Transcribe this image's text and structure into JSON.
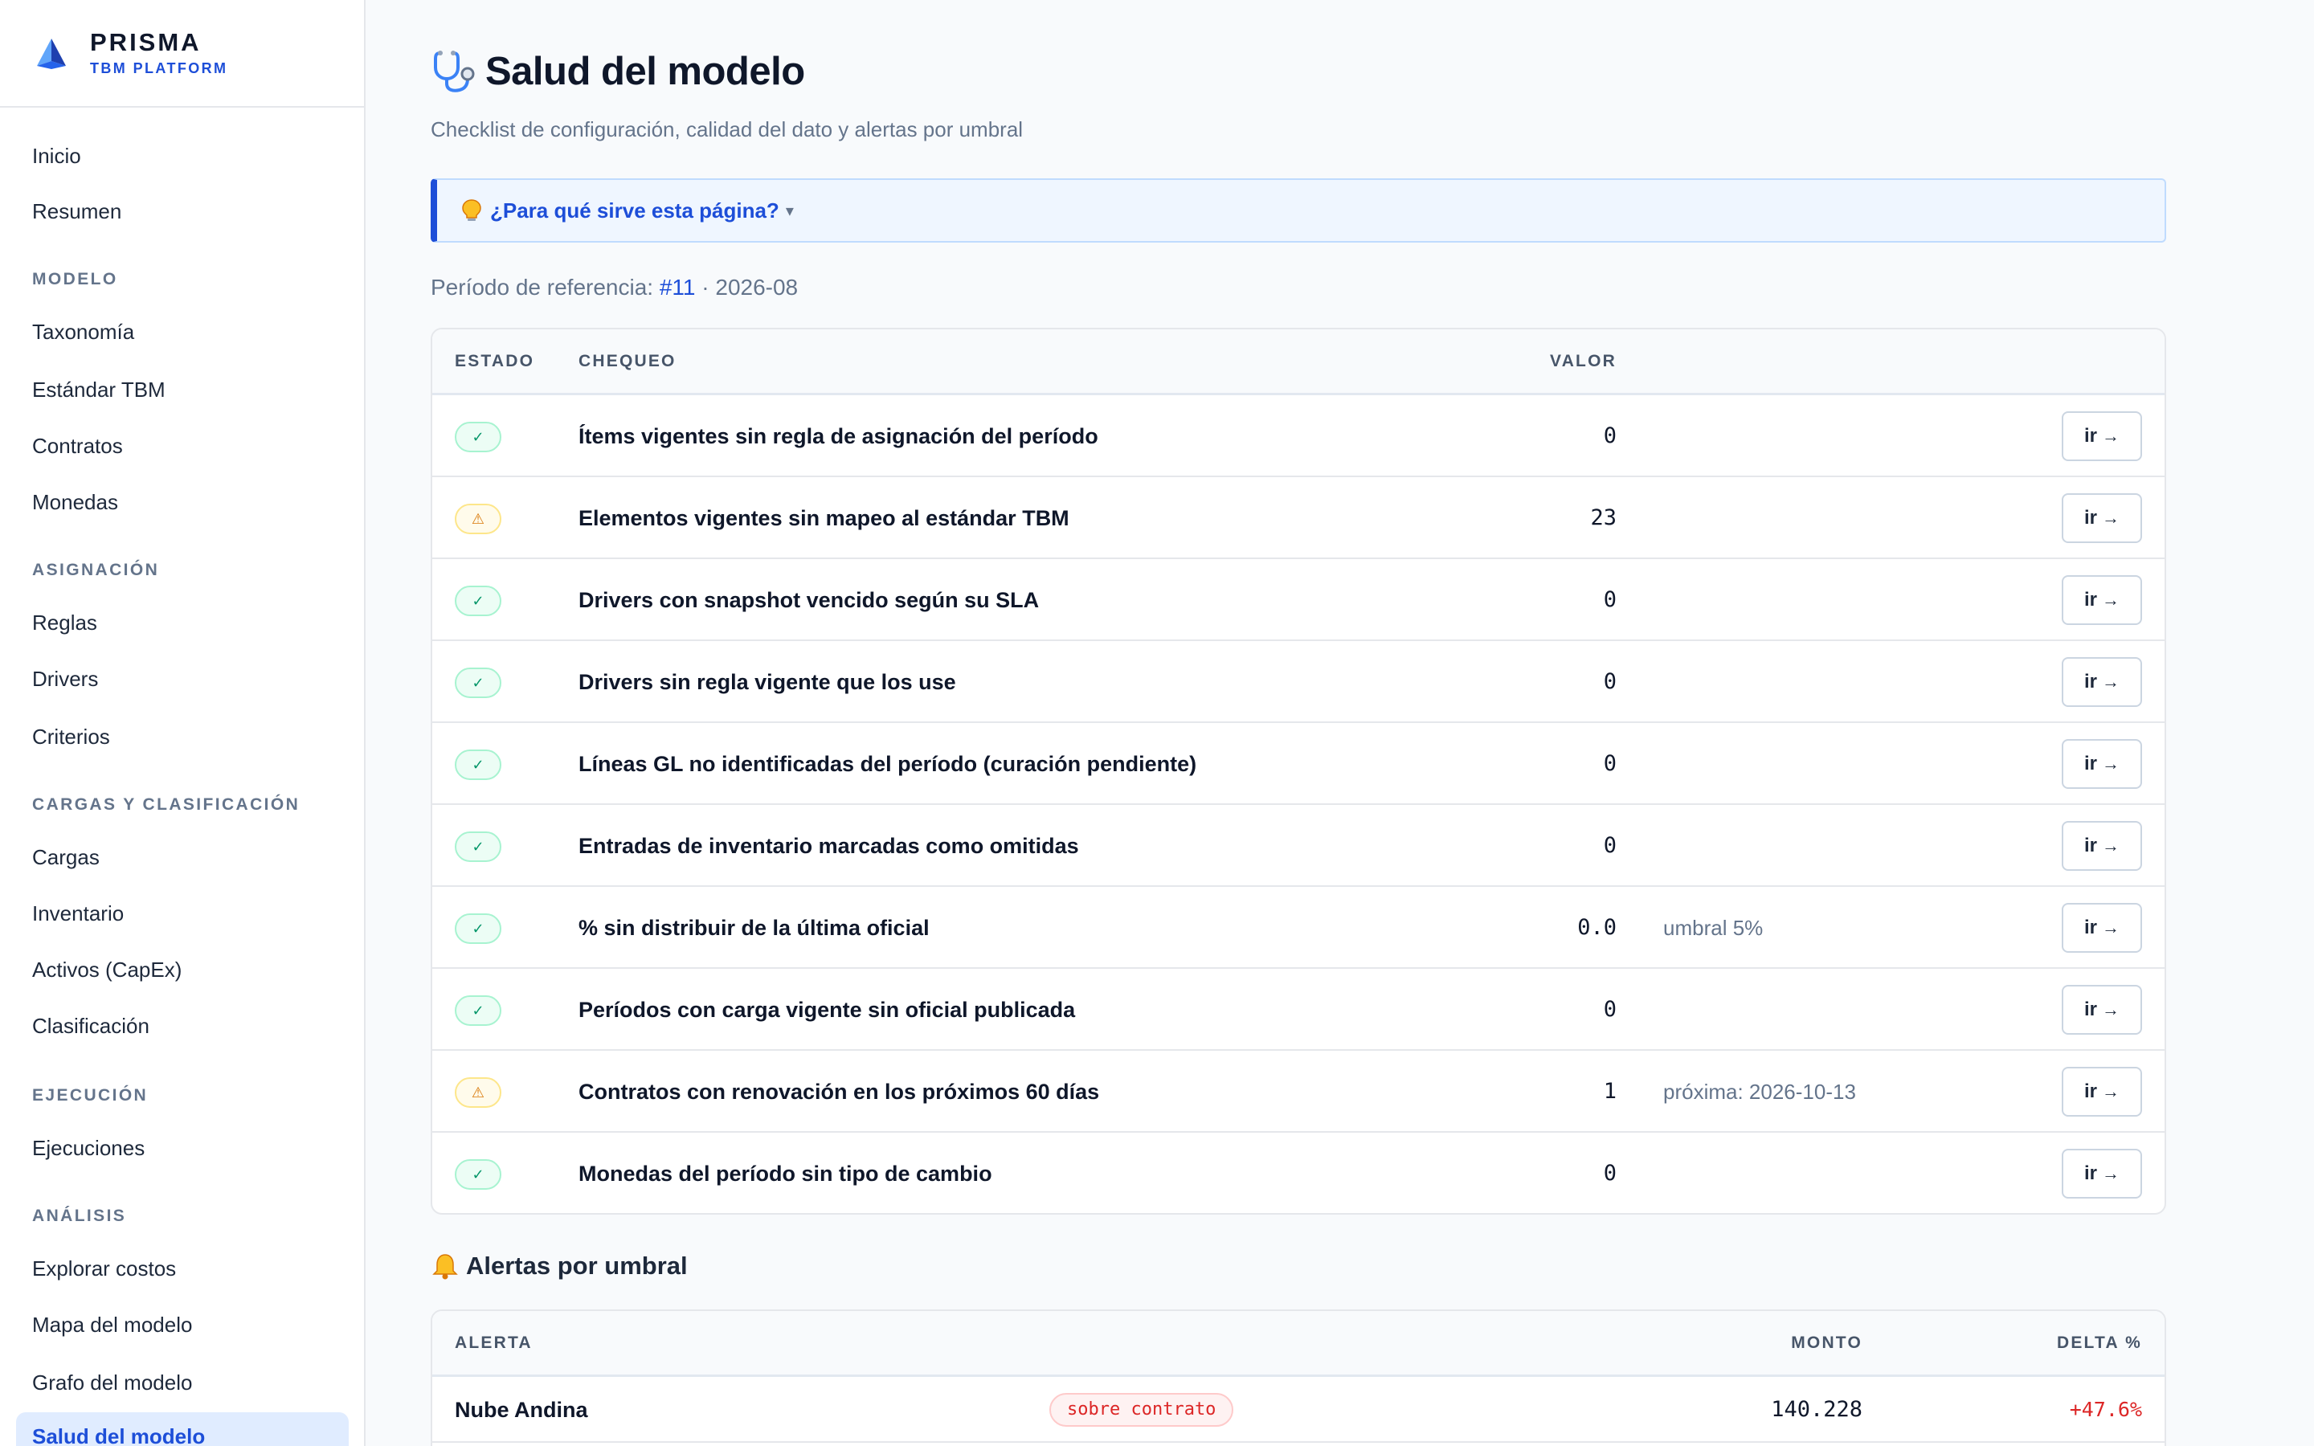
{
  "brand": {
    "name": "PRISMA",
    "subtitle": "TBM PLATFORM",
    "accent_color": "#1d4ed8"
  },
  "sidebar": {
    "top_items": [
      "Inicio",
      "Resumen"
    ],
    "sections": [
      {
        "title": "MODELO",
        "items": [
          "Taxonomía",
          "Estándar TBM",
          "Contratos",
          "Monedas"
        ]
      },
      {
        "title": "ASIGNACIÓN",
        "items": [
          "Reglas",
          "Drivers",
          "Criterios"
        ]
      },
      {
        "title": "CARGAS Y CLASIFICACIÓN",
        "items": [
          "Cargas",
          "Inventario",
          "Activos (CapEx)",
          "Clasificación"
        ]
      },
      {
        "title": "EJECUCIÓN",
        "items": [
          "Ejecuciones"
        ]
      },
      {
        "title": "ANÁLISIS",
        "items": [
          "Explorar costos",
          "Mapa del modelo",
          "Grafo del modelo",
          "Salud del modelo"
        ]
      }
    ],
    "active_item": "Salud del modelo"
  },
  "page": {
    "title": "Salud del modelo",
    "title_icon": "stethoscope-icon",
    "subtitle": "Checklist de configuración, calidad del dato y alertas por umbral",
    "help_toggle": "¿Para qué sirve esta página?",
    "help_icon": "lightbulb-icon",
    "help_caret": "▾",
    "period_label": "Período de referencia:",
    "period_link": "#11",
    "period_separator": "·",
    "period_value": "2026-08"
  },
  "checks": {
    "headers": {
      "status": "ESTADO",
      "check": "CHEQUEO",
      "value": "VALOR"
    },
    "go_label": "ir",
    "go_arrow": "→",
    "status_symbols": {
      "ok": "✓",
      "warn": "⚠"
    },
    "status_colors": {
      "ok": "#059669",
      "warn": "#d97706"
    },
    "rows": [
      {
        "status": "ok",
        "label": "Ítems vigentes sin regla de asignación del período",
        "value": "0",
        "note": ""
      },
      {
        "status": "warn",
        "label": "Elementos vigentes sin mapeo al estándar TBM",
        "value": "23",
        "note": ""
      },
      {
        "status": "ok",
        "label": "Drivers con snapshot vencido según su SLA",
        "value": "0",
        "note": ""
      },
      {
        "status": "ok",
        "label": "Drivers sin regla vigente que los use",
        "value": "0",
        "note": ""
      },
      {
        "status": "ok",
        "label": "Líneas GL no identificadas del período (curación pendiente)",
        "value": "0",
        "note": ""
      },
      {
        "status": "ok",
        "label": "Entradas de inventario marcadas como omitidas",
        "value": "0",
        "note": ""
      },
      {
        "status": "ok",
        "label": "% sin distribuir de la última oficial",
        "value": "0.0",
        "note": "umbral 5%"
      },
      {
        "status": "ok",
        "label": "Períodos con carga vigente sin oficial publicada",
        "value": "0",
        "note": ""
      },
      {
        "status": "warn",
        "label": "Contratos con renovación en los próximos 60 días",
        "value": "1",
        "note": "próxima: 2026-10-13"
      },
      {
        "status": "ok",
        "label": "Monedas del período sin tipo de cambio",
        "value": "0",
        "note": ""
      }
    ]
  },
  "alerts": {
    "title": "Alertas por umbral",
    "title_icon": "bell-icon",
    "headers": {
      "alert": "ALERTA",
      "amount": "MONTO",
      "delta": "DELTA %"
    },
    "rows": [
      {
        "name": "Nube Andina",
        "tag": "sobre contrato",
        "amount": "140.228",
        "delta": "+47.6%"
      }
    ]
  }
}
